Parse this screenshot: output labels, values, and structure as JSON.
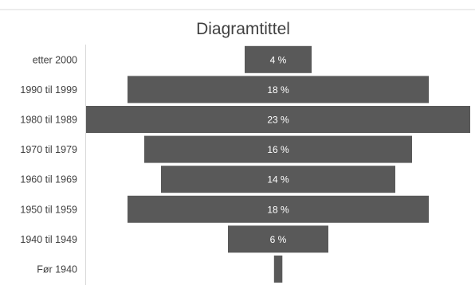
{
  "chart_data": {
    "type": "bar",
    "orientation": "horizontal-centered",
    "title": "Diagramtittel",
    "categories": [
      "etter 2000",
      "1990 til 1999",
      "1980 til 1989",
      "1970 til 1979",
      "1960 til 1969",
      "1950 til 1959",
      "1940 til 1949",
      "Før 1940"
    ],
    "values": [
      4,
      18,
      23,
      16,
      14,
      18,
      6,
      0.5
    ],
    "value_labels": [
      "4 %",
      "18 %",
      "23 %",
      "16 %",
      "14 %",
      "18 %",
      "6 %",
      ""
    ],
    "bar_color": "#595959",
    "xlabel": "",
    "ylabel": "",
    "grid": false,
    "legend": "none"
  }
}
